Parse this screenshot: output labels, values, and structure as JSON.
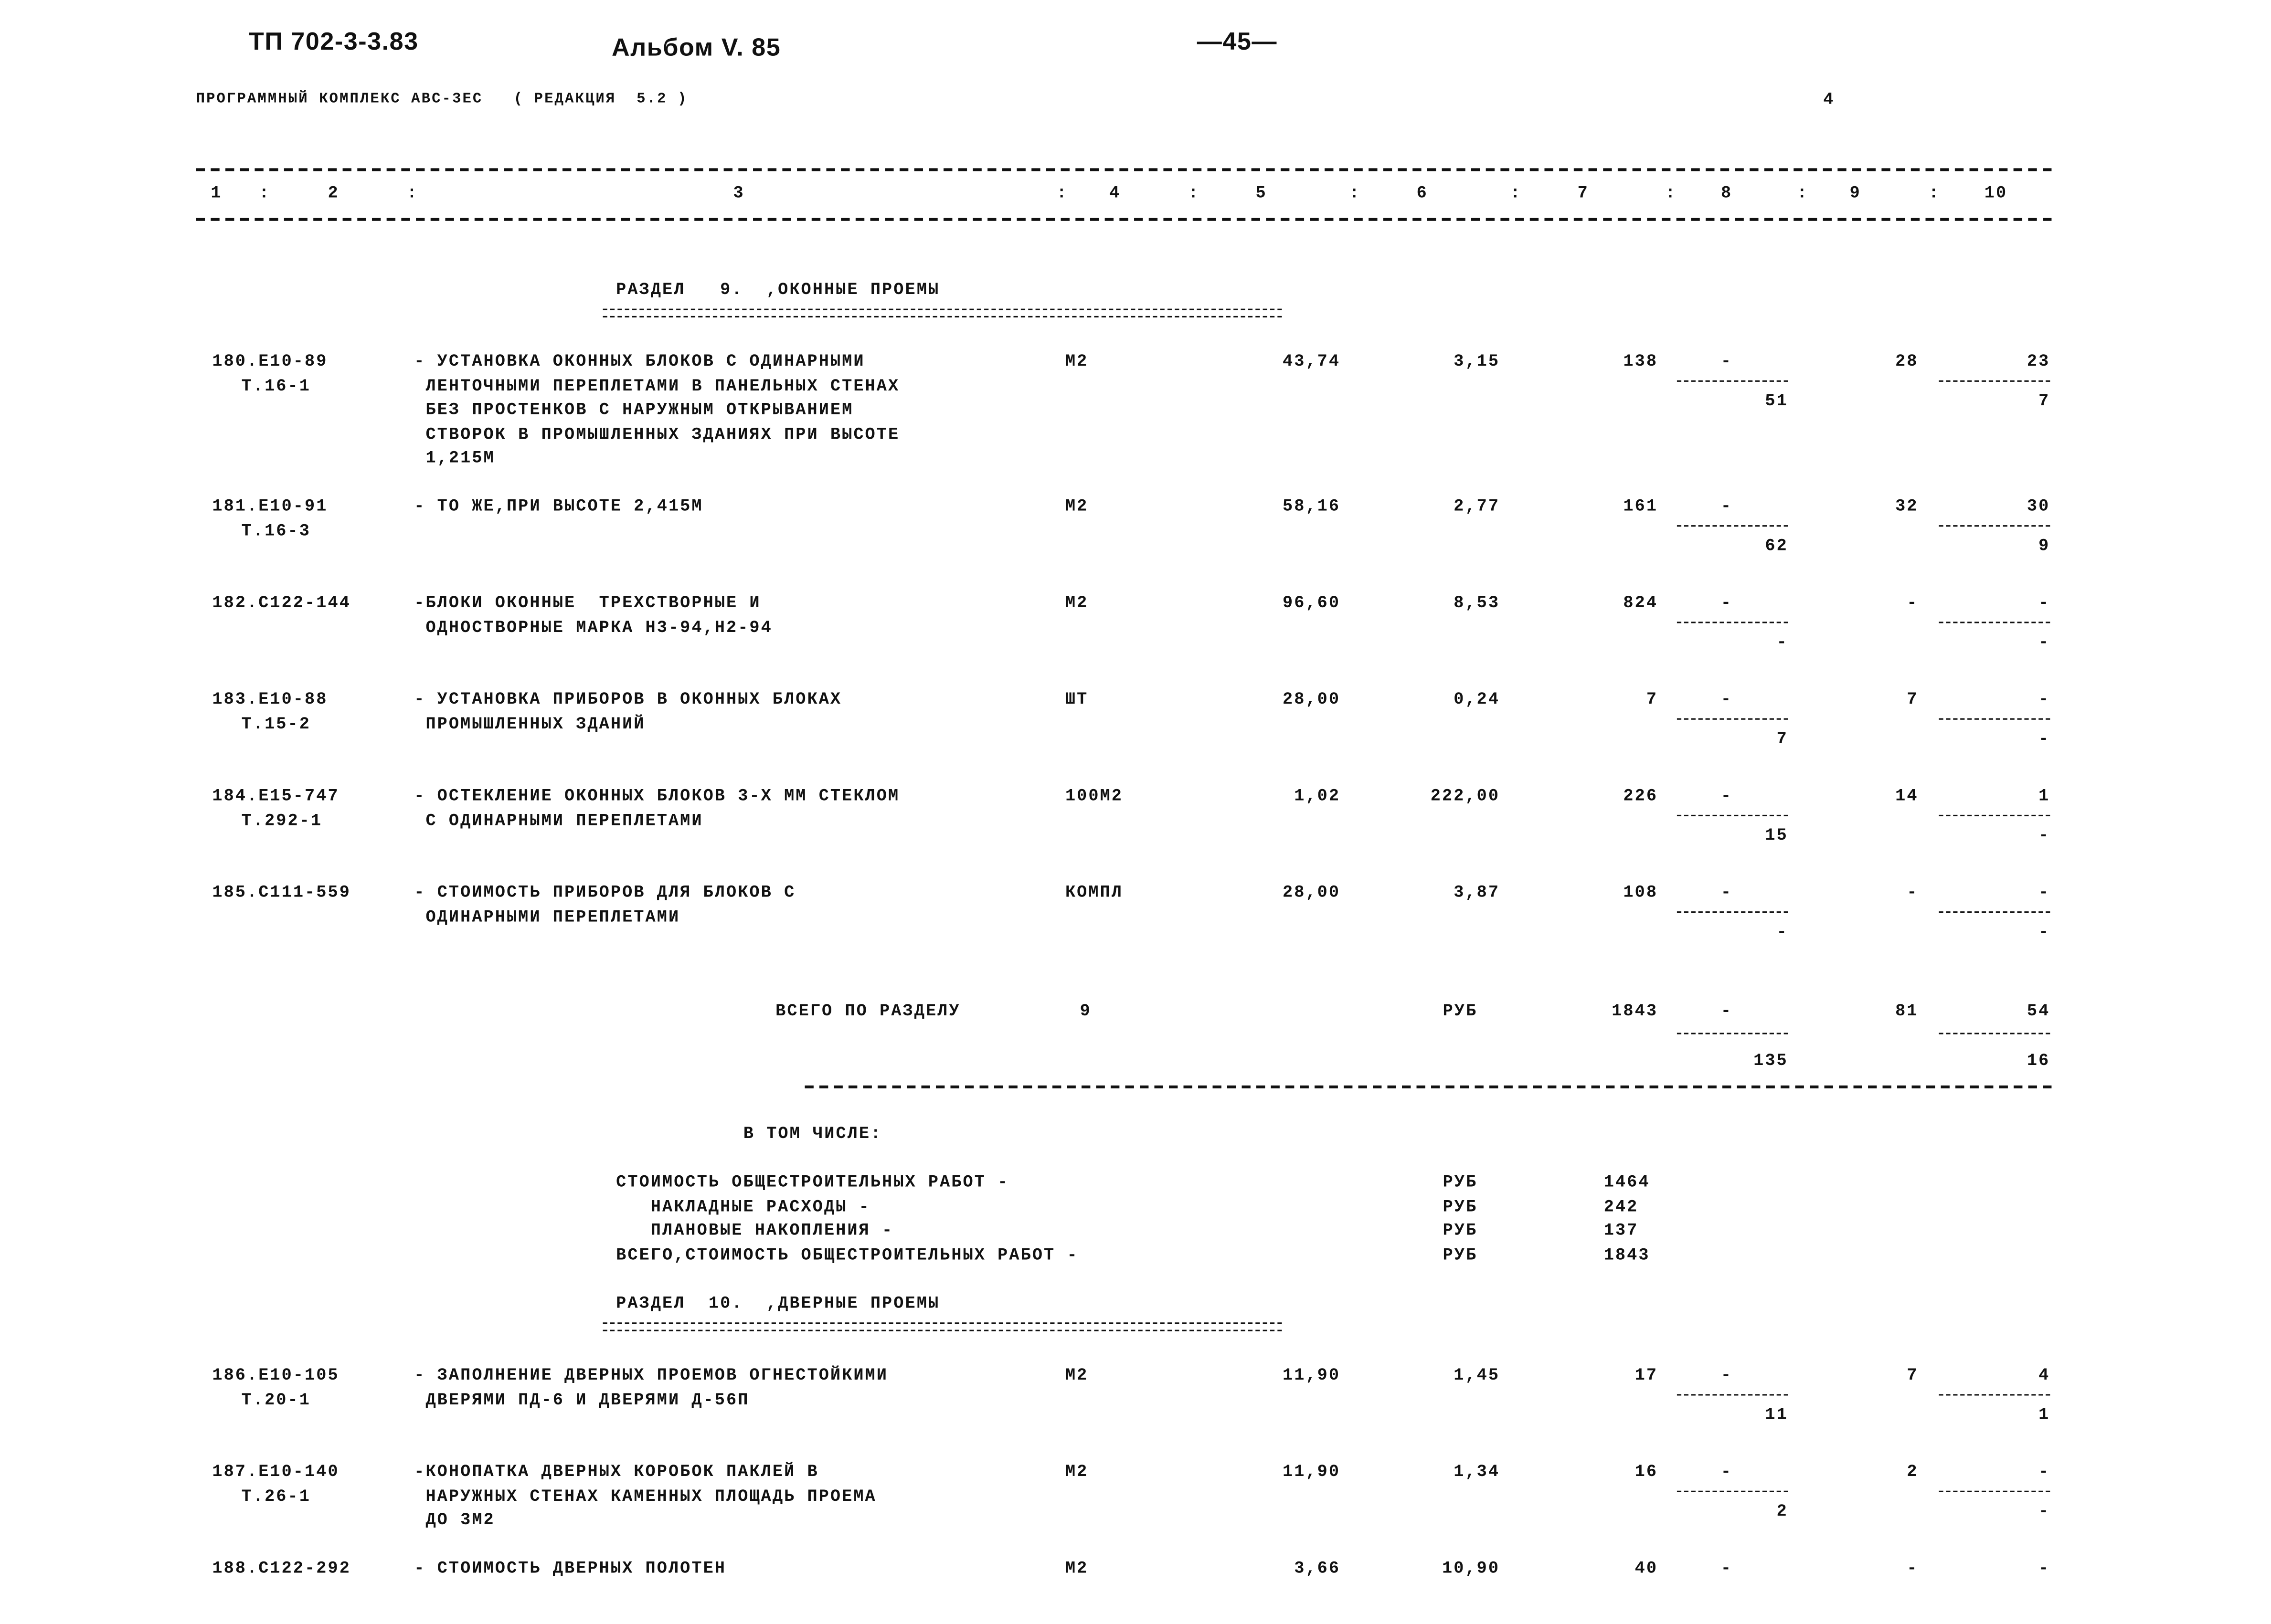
{
  "header": {
    "doc_code": "ТП 702-3-3.83",
    "album": "Альбом V. 85",
    "page_number": "—45—",
    "program": "ПРОГРАММНЫЙ КОМПЛЕКС АВС-3ЕС   ( РЕДАКЦИЯ  5.2 )",
    "sheet": "4"
  },
  "columns": [
    "1",
    "2",
    "3",
    "4",
    "5",
    "6",
    "7",
    "8",
    "9",
    "10"
  ],
  "section9": {
    "title": "РАЗДЕЛ   9.  ,ОКОННЫЕ ПРОЕМЫ",
    "rows": [
      {
        "code": [
          "180.Е10-89",
          "Т.16-1"
        ],
        "desc": [
          "- УСТАНОВКА ОКОННЫХ БЛОКОВ С ОДИНАРНЫМИ",
          " ЛЕНТОЧНЫМИ ПЕРЕПЛЕТАМИ В ПАНЕЛЬНЫХ СТЕНАХ",
          " БЕЗ ПРОСТЕНКОВ С НАРУЖНЫМ ОТКРЫВАНИЕМ",
          " СТВОРОК В ПРОМЫШЛЕННЫХ ЗДАНИЯХ ПРИ ВЫСОТЕ",
          " 1,215М"
        ],
        "unit": "М2",
        "c5": "43,74",
        "c6": "3,15",
        "c7": "138",
        "c8_top": "-",
        "c8_bottom": "51",
        "c9": "28",
        "c10_top": "23",
        "c10_bottom": "7"
      },
      {
        "code": [
          "181.Е10-91",
          "Т.16-3"
        ],
        "desc": [
          "- ТО ЖЕ,ПРИ ВЫСОТЕ 2,415М"
        ],
        "unit": "М2",
        "c5": "58,16",
        "c6": "2,77",
        "c7": "161",
        "c8_top": "-",
        "c8_bottom": "62",
        "c9": "32",
        "c10_top": "30",
        "c10_bottom": "9"
      },
      {
        "code": [
          "182.С122-144"
        ],
        "desc": [
          "-БЛОКИ ОКОННЫЕ  ТРЕХСТВОРНЫЕ И",
          " ОДНОСТВОРНЫЕ МАРКА Н3-94,Н2-94"
        ],
        "unit": "М2",
        "c5": "96,60",
        "c6": "8,53",
        "c7": "824",
        "c8_top": "-",
        "c8_bottom": "-",
        "c9": "-",
        "c10_top": "-",
        "c10_bottom": "-"
      },
      {
        "code": [
          "183.Е10-88",
          "Т.15-2"
        ],
        "desc": [
          "- УСТАНОВКА ПРИБОРОВ В ОКОННЫХ БЛОКАХ",
          " ПРОМЫШЛЕННЫХ ЗДАНИЙ"
        ],
        "unit": "ШТ",
        "c5": "28,00",
        "c6": "0,24",
        "c7": "7",
        "c8_top": "-",
        "c8_bottom": "7",
        "c9": "7",
        "c10_top": "-",
        "c10_bottom": "-"
      },
      {
        "code": [
          "184.Е15-747",
          "Т.292-1"
        ],
        "desc": [
          "- ОСТЕКЛЕНИЕ ОКОННЫХ БЛОКОВ 3-Х ММ СТЕКЛОМ",
          " С ОДИНАРНЫМИ ПЕРЕПЛЕТАМИ"
        ],
        "unit": "100М2",
        "c5": "1,02",
        "c6": "222,00",
        "c7": "226",
        "c8_top": "-",
        "c8_bottom": "15",
        "c9": "14",
        "c10_top": "1",
        "c10_bottom": "-"
      },
      {
        "code": [
          "185.С111-559"
        ],
        "desc": [
          "- СТОИМОСТЬ ПРИБОРОВ ДЛЯ БЛОКОВ С",
          " ОДИНАРНЫМИ ПЕРЕПЛЕТАМИ"
        ],
        "unit": "КОМПЛ",
        "c5": "28,00",
        "c6": "3,87",
        "c7": "108",
        "c8_top": "-",
        "c8_bottom": "-",
        "c9": "-",
        "c10_top": "-",
        "c10_bottom": "-"
      }
    ],
    "total": {
      "label": "ВСЕГО ПО РАЗДЕЛУ",
      "section": "9",
      "unit": "РУБ",
      "c7": "1843",
      "c8_top": "-",
      "c8_bottom": "135",
      "c9": "81",
      "c10_top": "54",
      "c10_bottom": "16"
    },
    "including_label": "В ТОМ ЧИСЛЕ:",
    "breakdown": [
      {
        "label": "СТОИМОСТЬ ОБЩЕСТРОИТЕЛЬНЫХ РАБОТ -",
        "unit": "РУБ",
        "value": "1464"
      },
      {
        "label": "   НАКЛАДНЫЕ РАСХОДЫ -",
        "unit": "РУБ",
        "value": "242"
      },
      {
        "label": "   ПЛАНОВЫЕ НАКОПЛЕНИЯ -",
        "unit": "РУБ",
        "value": "137"
      },
      {
        "label": "ВСЕГО,СТОИМОСТЬ ОБЩЕСТРОИТЕЛЬНЫХ РАБОТ -",
        "unit": "РУБ",
        "value": "1843"
      }
    ]
  },
  "section10": {
    "title": "РАЗДЕЛ  10.  ,ДВЕРНЫЕ ПРОЕМЫ",
    "rows": [
      {
        "code": [
          "186.Е10-105",
          "Т.20-1"
        ],
        "desc": [
          "- ЗАПОЛНЕНИЕ ДВЕРНЫХ ПРОЕМОВ ОГНЕСТОЙКИМИ",
          " ДВЕРЯМИ ПД-6 И ДВЕРЯМИ Д-56П"
        ],
        "unit": "М2",
        "c5": "11,90",
        "c6": "1,45",
        "c7": "17",
        "c8_top": "-",
        "c8_bottom": "11",
        "c9": "7",
        "c10_top": "4",
        "c10_bottom": "1"
      },
      {
        "code": [
          "187.Е10-140",
          "Т.26-1"
        ],
        "desc": [
          "-КОНОПАТКА ДВЕРНЫХ КОРОБОК ПАКЛЕЙ В",
          " НАРУЖНЫХ СТЕНАХ КАМЕННЫХ ПЛОЩАДЬ ПРОЕМА",
          " ДО 3М2"
        ],
        "unit": "М2",
        "c5": "11,90",
        "c6": "1,34",
        "c7": "16",
        "c8_top": "-",
        "c8_bottom": "2",
        "c9": "2",
        "c10_top": "-",
        "c10_bottom": "-"
      },
      {
        "code": [
          "188.С122-292"
        ],
        "desc": [
          "- СТОИМОСТЬ ДВЕРНЫХ ПОЛОТЕН"
        ],
        "unit": "М2",
        "c5": "3,66",
        "c6": "10,90",
        "c7": "40",
        "c8_top": "-",
        "c9": "-",
        "c10_top": "-"
      }
    ]
  }
}
